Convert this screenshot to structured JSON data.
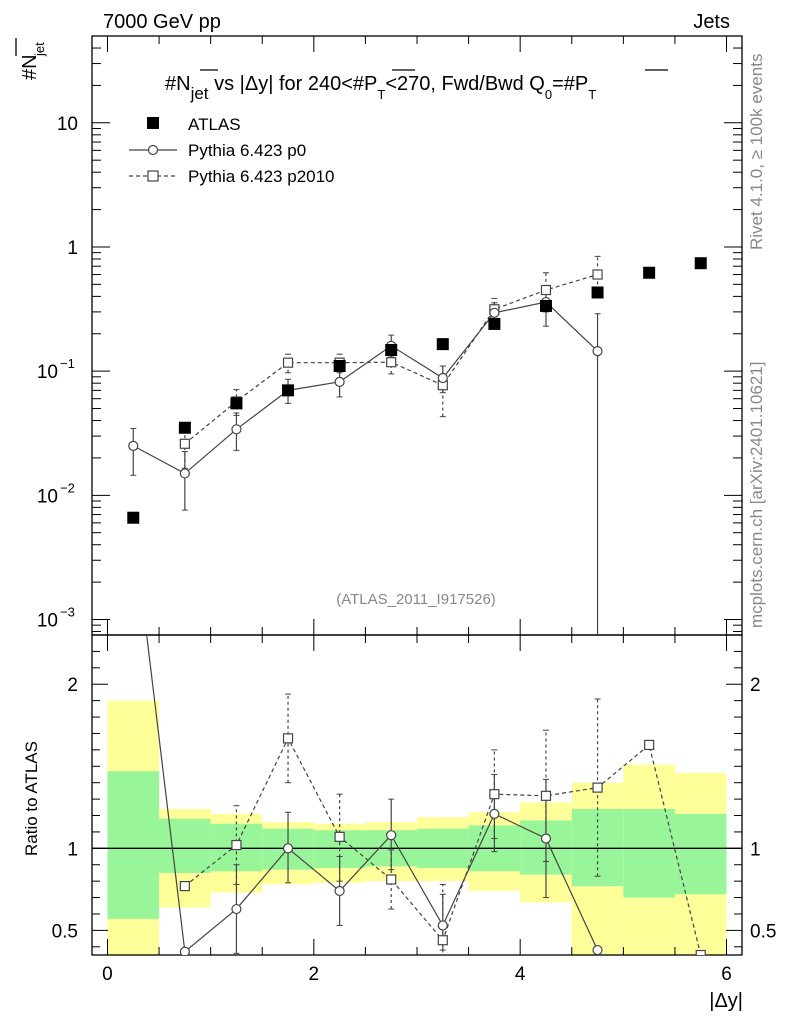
{
  "header": {
    "energy_label": "7000 GeV pp",
    "category_label": "Jets"
  },
  "side": {
    "rivet_label": "Rivet 4.1.0, ≥ 100k events",
    "mcplots_label": "mcplots.cern.ch [arXiv:2401.10621]"
  },
  "chart_data": {
    "type": "scatter",
    "title": "#N̅jet vs |Δy| for 240<#P̅T<270, Fwd/Bwd Q0=#P̅T",
    "title_parts": {
      "p1": "#N",
      "sub1": "jet",
      "p2": " vs |Δy|  for 240<#",
      "p3": "P",
      "sub2": "T",
      "p4": "<270, Fwd/Bwd Q",
      "sub3": "0",
      "p5": "=#",
      "p6": "P",
      "sub4": "T"
    },
    "ylabel": {
      "main": "#N",
      "sub": "jet"
    },
    "xlabel": "|Δy|",
    "watermark": "(ATLAS_2011_I917526)",
    "x_range": [
      -0.15,
      6.15
    ],
    "x_ticks": [
      {
        "v": 0,
        "label": "0"
      },
      {
        "v": 2,
        "label": "2"
      },
      {
        "v": 4,
        "label": "4"
      },
      {
        "v": 6,
        "label": "6"
      }
    ],
    "y_range_log": [
      0.00075,
      50
    ],
    "y_ticks": [
      {
        "v": 0.001,
        "base": "10",
        "exp": "−3"
      },
      {
        "v": 0.01,
        "base": "10",
        "exp": "−2"
      },
      {
        "v": 0.1,
        "base": "10",
        "exp": "−1"
      },
      {
        "v": 1,
        "base": "1",
        "exp": ""
      },
      {
        "v": 10,
        "base": "10",
        "exp": ""
      }
    ],
    "legend": [
      {
        "key": "atlas",
        "label": "ATLAS"
      },
      {
        "key": "p0",
        "label": "Pythia 6.423 p0"
      },
      {
        "key": "p2010",
        "label": "Pythia 6.423 p2010"
      }
    ],
    "x": [
      0.25,
      0.75,
      1.25,
      1.75,
      2.25,
      2.75,
      3.25,
      3.75,
      4.25,
      4.75,
      5.25,
      5.75
    ],
    "series": [
      {
        "name": "ATLAS",
        "values": [
          0.0066,
          0.035,
          0.055,
          0.07,
          0.11,
          0.148,
          0.165,
          0.24,
          0.335,
          0.43,
          0.62,
          0.74
        ]
      },
      {
        "name": "Pythia 6.423 p0",
        "values": [
          0.025,
          0.015,
          0.034,
          0.07,
          0.082,
          0.16,
          0.088,
          0.295,
          0.36,
          0.145,
          null,
          null
        ],
        "err_lo": [
          0.0145,
          0.0076,
          0.023,
          0.055,
          0.062,
          0.13,
          0.067,
          0.235,
          0.23,
          0.0005,
          null,
          null
        ],
        "err_hi": [
          0.0345,
          0.0225,
          0.046,
          0.086,
          0.102,
          0.195,
          0.11,
          0.355,
          0.49,
          0.29,
          null,
          null
        ]
      },
      {
        "name": "Pythia 6.423 p2010",
        "values": [
          null,
          0.026,
          0.057,
          0.117,
          0.117,
          0.118,
          0.077,
          0.315,
          0.45,
          0.6,
          null,
          null
        ],
        "err_lo": [
          null,
          0.0165,
          0.044,
          0.097,
          0.097,
          0.095,
          0.043,
          0.245,
          0.3,
          0.4,
          null,
          null
        ],
        "err_hi": [
          null,
          0.0355,
          0.071,
          0.137,
          0.137,
          0.143,
          0.11,
          0.385,
          0.62,
          0.84,
          null,
          null
        ]
      }
    ],
    "ratio": {
      "ylabel": "Ratio to ATLAS",
      "y_range": [
        0.35,
        2.3
      ],
      "y_ticks": [
        {
          "v": 0.5,
          "label": "0.5"
        },
        {
          "v": 1,
          "label": "1"
        },
        {
          "v": 2,
          "label": "2"
        }
      ],
      "bins": [
        [
          0.0,
          0.5
        ],
        [
          0.5,
          1.0
        ],
        [
          1.0,
          1.5
        ],
        [
          1.5,
          2.0
        ],
        [
          2.0,
          2.5
        ],
        [
          2.5,
          3.0
        ],
        [
          3.0,
          3.5
        ],
        [
          3.5,
          4.0
        ],
        [
          4.0,
          4.5
        ],
        [
          4.5,
          5.0
        ],
        [
          5.0,
          5.5
        ],
        [
          5.5,
          6.0
        ]
      ],
      "band_yellow": [
        [
          0.35,
          1.9
        ],
        [
          0.64,
          1.24
        ],
        [
          0.73,
          1.21
        ],
        [
          0.78,
          1.16
        ],
        [
          0.79,
          1.15
        ],
        [
          0.8,
          1.16
        ],
        [
          0.8,
          1.19
        ],
        [
          0.74,
          1.22
        ],
        [
          0.67,
          1.28
        ],
        [
          0.35,
          1.4
        ],
        [
          0.35,
          1.51
        ],
        [
          0.35,
          1.46
        ]
      ],
      "band_green": [
        [
          0.57,
          1.47
        ],
        [
          0.85,
          1.18
        ],
        [
          0.86,
          1.15
        ],
        [
          0.87,
          1.12
        ],
        [
          0.88,
          1.11
        ],
        [
          0.89,
          1.11
        ],
        [
          0.88,
          1.12
        ],
        [
          0.86,
          1.14
        ],
        [
          0.84,
          1.17
        ],
        [
          0.77,
          1.24
        ],
        [
          0.7,
          1.24
        ],
        [
          0.72,
          1.21
        ]
      ],
      "p0": [
        2.3,
        0.37,
        0.63,
        1.0,
        0.74,
        1.08,
        0.53,
        1.21,
        1.06,
        0.38,
        null,
        null
      ],
      "p0_err_lo": [
        null,
        null,
        0.36,
        0.79,
        0.53,
        0.87,
        0.38,
        0.98,
        0.7,
        null,
        null,
        null
      ],
      "p0_err_hi": [
        null,
        null,
        0.9,
        1.22,
        0.95,
        1.3,
        0.72,
        1.45,
        1.42,
        null,
        null,
        null
      ],
      "p2010": [
        null,
        0.77,
        1.02,
        1.67,
        1.07,
        0.81,
        0.44,
        1.33,
        1.32,
        1.37,
        1.63,
        0.35
      ],
      "p2010_err_lo": [
        null,
        null,
        0.78,
        1.4,
        0.8,
        0.63,
        null,
        1.06,
        0.92,
        0.83,
        null,
        null
      ],
      "p2010_err_hi": [
        null,
        null,
        1.26,
        1.94,
        1.33,
        0.99,
        0.78,
        1.6,
        1.72,
        1.91,
        null,
        null
      ]
    }
  }
}
